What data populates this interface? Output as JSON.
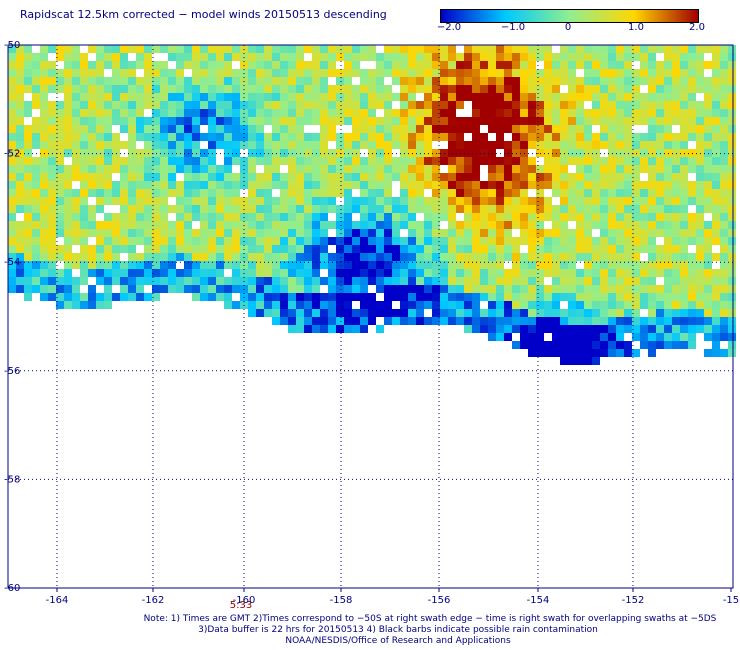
{
  "title": "Rapidscat 12.5km corrected − model winds 20150513 descending",
  "colorbar": {
    "labels": [
      "−2.0",
      "−1.0",
      "0",
      "1.0",
      "2.0"
    ],
    "min": -2.0,
    "max": 2.0
  },
  "y_ticks": [
    "-50",
    "-52",
    "-54",
    "-56",
    "-58",
    "-60"
  ],
  "x_ticks": [
    "-164",
    "-162",
    "-160",
    "-158",
    "-156",
    "-154",
    "-152",
    "-15"
  ],
  "time_label": "5:33",
  "notes": {
    "line1": "Note: 1) Times are GMT 2)Times correspond to −50S at right swath edge − time is right swath for overlapping swaths at −5DS",
    "line2": "3)Data buffer is 22 hrs for 20150513 4) Black barbs indicate possible rain contamination",
    "line3": "NOAA/NESDIS/Office of Research and Applications"
  },
  "colors": {
    "neg2": "#0000c8",
    "neg1": "#00c8ff",
    "zero": "#90ee90",
    "pos1": "#ffd700",
    "pos2": "#a00000",
    "grid": "#000080"
  }
}
